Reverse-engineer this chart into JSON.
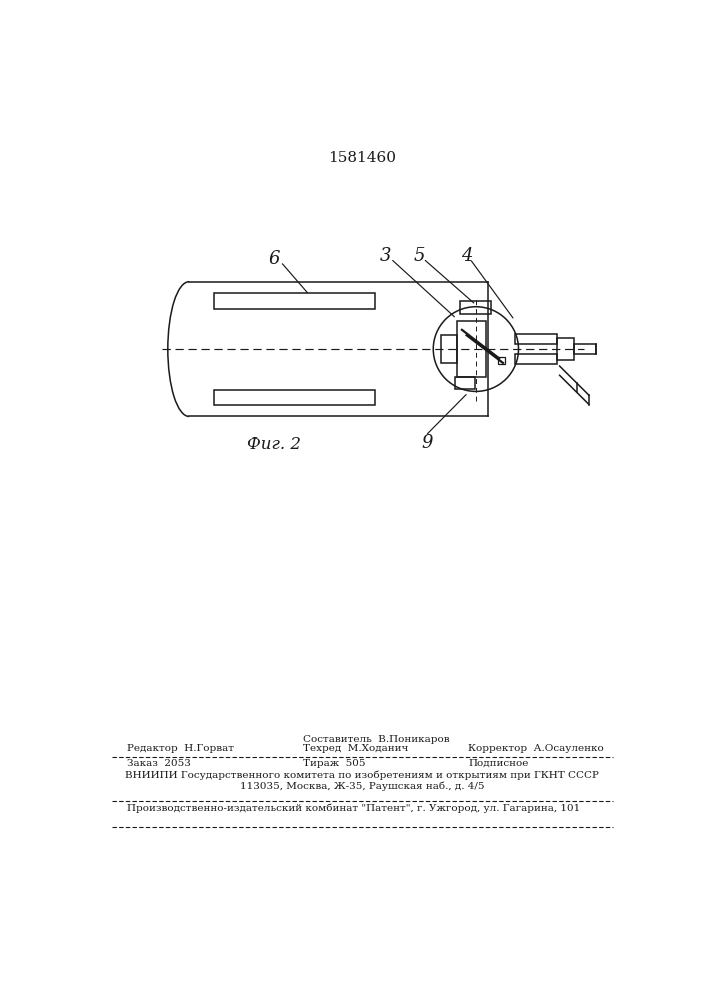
{
  "patent_number": "1581460",
  "fig_label": "Фиг. 2",
  "background_color": "#ffffff",
  "line_color": "#1a1a1a",
  "label_6": "6",
  "label_3": "3",
  "label_5": "5",
  "label_4": "4",
  "label_9": "9",
  "footer_line1_left": "Редактор  Н.Горват",
  "footer_line1_center_top": "Составитель  В.Поникаров",
  "footer_line1_center_bot": "Техред  М.Ходанич",
  "footer_line1_right": "Корректор  А.Осауленко",
  "footer_line2_left": "Заказ  2053",
  "footer_line2_center": "Тираж  505",
  "footer_line2_right": "Подписное",
  "footer_line3": "ВНИИПИ Государственного комитета по изобретениям и открытиям при ГКНТ СССР",
  "footer_line4": "113035, Москва, Ж-35, Раушская наб., д. 4/5",
  "footer_line5": "Производственно-издательский комбинат \"Патент\", г. Ужгород, ул. Гагарина, 101"
}
